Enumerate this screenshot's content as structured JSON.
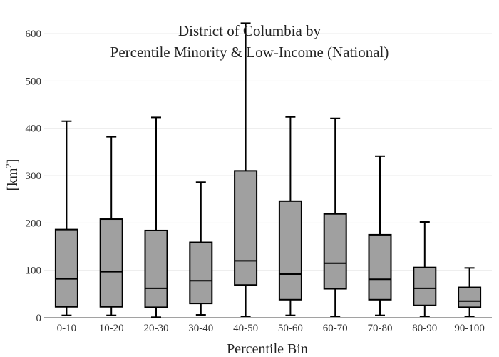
{
  "chart_data": {
    "type": "box",
    "title_lines": [
      "District of Columbia  by",
      "Percentile Minority & Low-Income (National)"
    ],
    "xlabel": "Percentile Bin",
    "ylabel": "[km",
    "ylabel_sup": "2",
    "ylabel_close": "]",
    "ylim": [
      0,
      600
    ],
    "yticks": [
      0,
      100,
      200,
      300,
      400,
      500,
      600
    ],
    "grid": true,
    "categories": [
      "0-10",
      "10-20",
      "20-30",
      "30-40",
      "40-50",
      "50-60",
      "60-70",
      "70-80",
      "80-90",
      "90-100"
    ],
    "boxes": [
      {
        "min": 5,
        "q1": 23,
        "median": 82,
        "q3": 186,
        "max": 415
      },
      {
        "min": 5,
        "q1": 23,
        "median": 97,
        "q3": 208,
        "max": 382
      },
      {
        "min": 1,
        "q1": 22,
        "median": 62,
        "q3": 184,
        "max": 423
      },
      {
        "min": 6,
        "q1": 30,
        "median": 78,
        "q3": 159,
        "max": 286
      },
      {
        "min": 3,
        "q1": 69,
        "median": 120,
        "q3": 310,
        "max": 622
      },
      {
        "min": 5,
        "q1": 38,
        "median": 92,
        "q3": 246,
        "max": 424
      },
      {
        "min": 3,
        "q1": 61,
        "median": 115,
        "q3": 219,
        "max": 421
      },
      {
        "min": 5,
        "q1": 38,
        "median": 81,
        "q3": 175,
        "max": 341
      },
      {
        "min": 3,
        "q1": 26,
        "median": 62,
        "q3": 106,
        "max": 202
      },
      {
        "min": 3,
        "q1": 22,
        "median": 35,
        "q3": 64,
        "max": 105
      }
    ],
    "colors": {
      "box_fill": "#a0a0a0",
      "stroke": "#000000",
      "grid": "#ebebeb"
    }
  }
}
